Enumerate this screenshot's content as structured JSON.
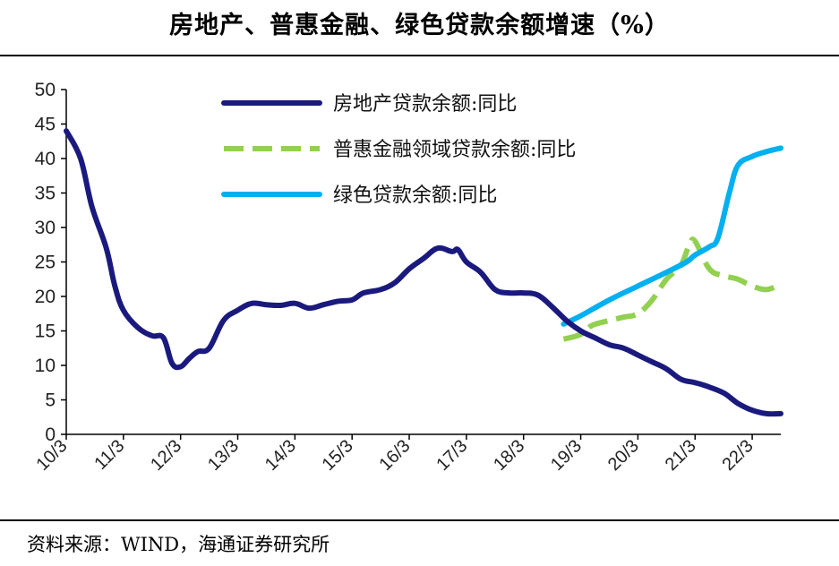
{
  "chart_data": {
    "type": "line",
    "title": "房地产、普惠金融、绿色贷款余额增速（%）",
    "source": "资料来源：WIND，海通证券研究所",
    "xlabel": "",
    "ylabel": "",
    "ylim": [
      0,
      50
    ],
    "yticks": [
      0,
      5,
      10,
      15,
      20,
      25,
      30,
      35,
      40,
      45,
      50
    ],
    "xlim": [
      0,
      12.5
    ],
    "xticks": [
      "10/3",
      "11/3",
      "12/3",
      "13/3",
      "14/3",
      "15/3",
      "16/3",
      "17/3",
      "18/3",
      "19/3",
      "20/3",
      "21/3",
      "22/3"
    ],
    "grid": false,
    "legend_position": "top-center",
    "series": [
      {
        "name": "房地产贷款余额:同比",
        "color": "#1a1a7e",
        "dash": "solid",
        "x": [
          0,
          0.25,
          0.45,
          0.7,
          0.85,
          1.0,
          1.25,
          1.5,
          1.7,
          1.85,
          2.0,
          2.15,
          2.3,
          2.5,
          2.75,
          3.0,
          3.25,
          3.5,
          3.75,
          4.0,
          4.25,
          4.5,
          4.75,
          5.0,
          5.2,
          5.5,
          5.75,
          6.0,
          6.25,
          6.5,
          6.75,
          6.85,
          7.0,
          7.25,
          7.5,
          7.75,
          8.0,
          8.25,
          8.5,
          8.75,
          9.0,
          9.25,
          9.5,
          9.75,
          10.0,
          10.25,
          10.5,
          10.75,
          11.0,
          11.2,
          11.5,
          11.75,
          12.0,
          12.25,
          12.5
        ],
        "values": [
          44.0,
          40.0,
          33.0,
          27.0,
          21.5,
          18.0,
          15.5,
          14.3,
          14.0,
          10.3,
          9.8,
          11.0,
          12.0,
          12.5,
          16.5,
          18.0,
          19.0,
          18.8,
          18.7,
          19.0,
          18.3,
          18.8,
          19.3,
          19.5,
          20.5,
          21.0,
          22.0,
          24.0,
          25.5,
          27.0,
          26.5,
          26.8,
          25.0,
          23.5,
          21.0,
          20.5,
          20.5,
          20.2,
          18.5,
          16.5,
          15.0,
          14.0,
          13.0,
          12.5,
          11.5,
          10.5,
          9.5,
          8.0,
          7.5,
          7.0,
          6.0,
          4.5,
          3.5,
          3.0,
          3.0
        ]
      },
      {
        "name": "普惠金融领域贷款余额:同比",
        "color": "#92d050",
        "dash": "dashed",
        "x": [
          8.7,
          9.0,
          9.2,
          9.5,
          9.75,
          10.0,
          10.25,
          10.5,
          10.75,
          10.9,
          11.0,
          11.25,
          11.5,
          11.75,
          12.0,
          12.25,
          12.5
        ],
        "values": [
          13.8,
          14.5,
          15.8,
          16.5,
          17.0,
          17.5,
          19.5,
          22.5,
          24.5,
          27.5,
          28.0,
          24.0,
          23.0,
          22.5,
          21.5,
          21.0,
          21.8
        ]
      },
      {
        "name": "绿色贷款余额:同比",
        "color": "#00b0f0",
        "dash": "solid",
        "x": [
          8.7,
          9.0,
          9.5,
          10.0,
          10.5,
          10.85,
          11.0,
          11.25,
          11.4,
          11.6,
          11.75,
          12.0,
          12.25,
          12.5
        ],
        "values": [
          16.0,
          17.2,
          19.5,
          21.5,
          23.5,
          25.0,
          26.0,
          27.2,
          28.5,
          35.0,
          39.0,
          40.3,
          41.0,
          41.5
        ]
      }
    ]
  }
}
